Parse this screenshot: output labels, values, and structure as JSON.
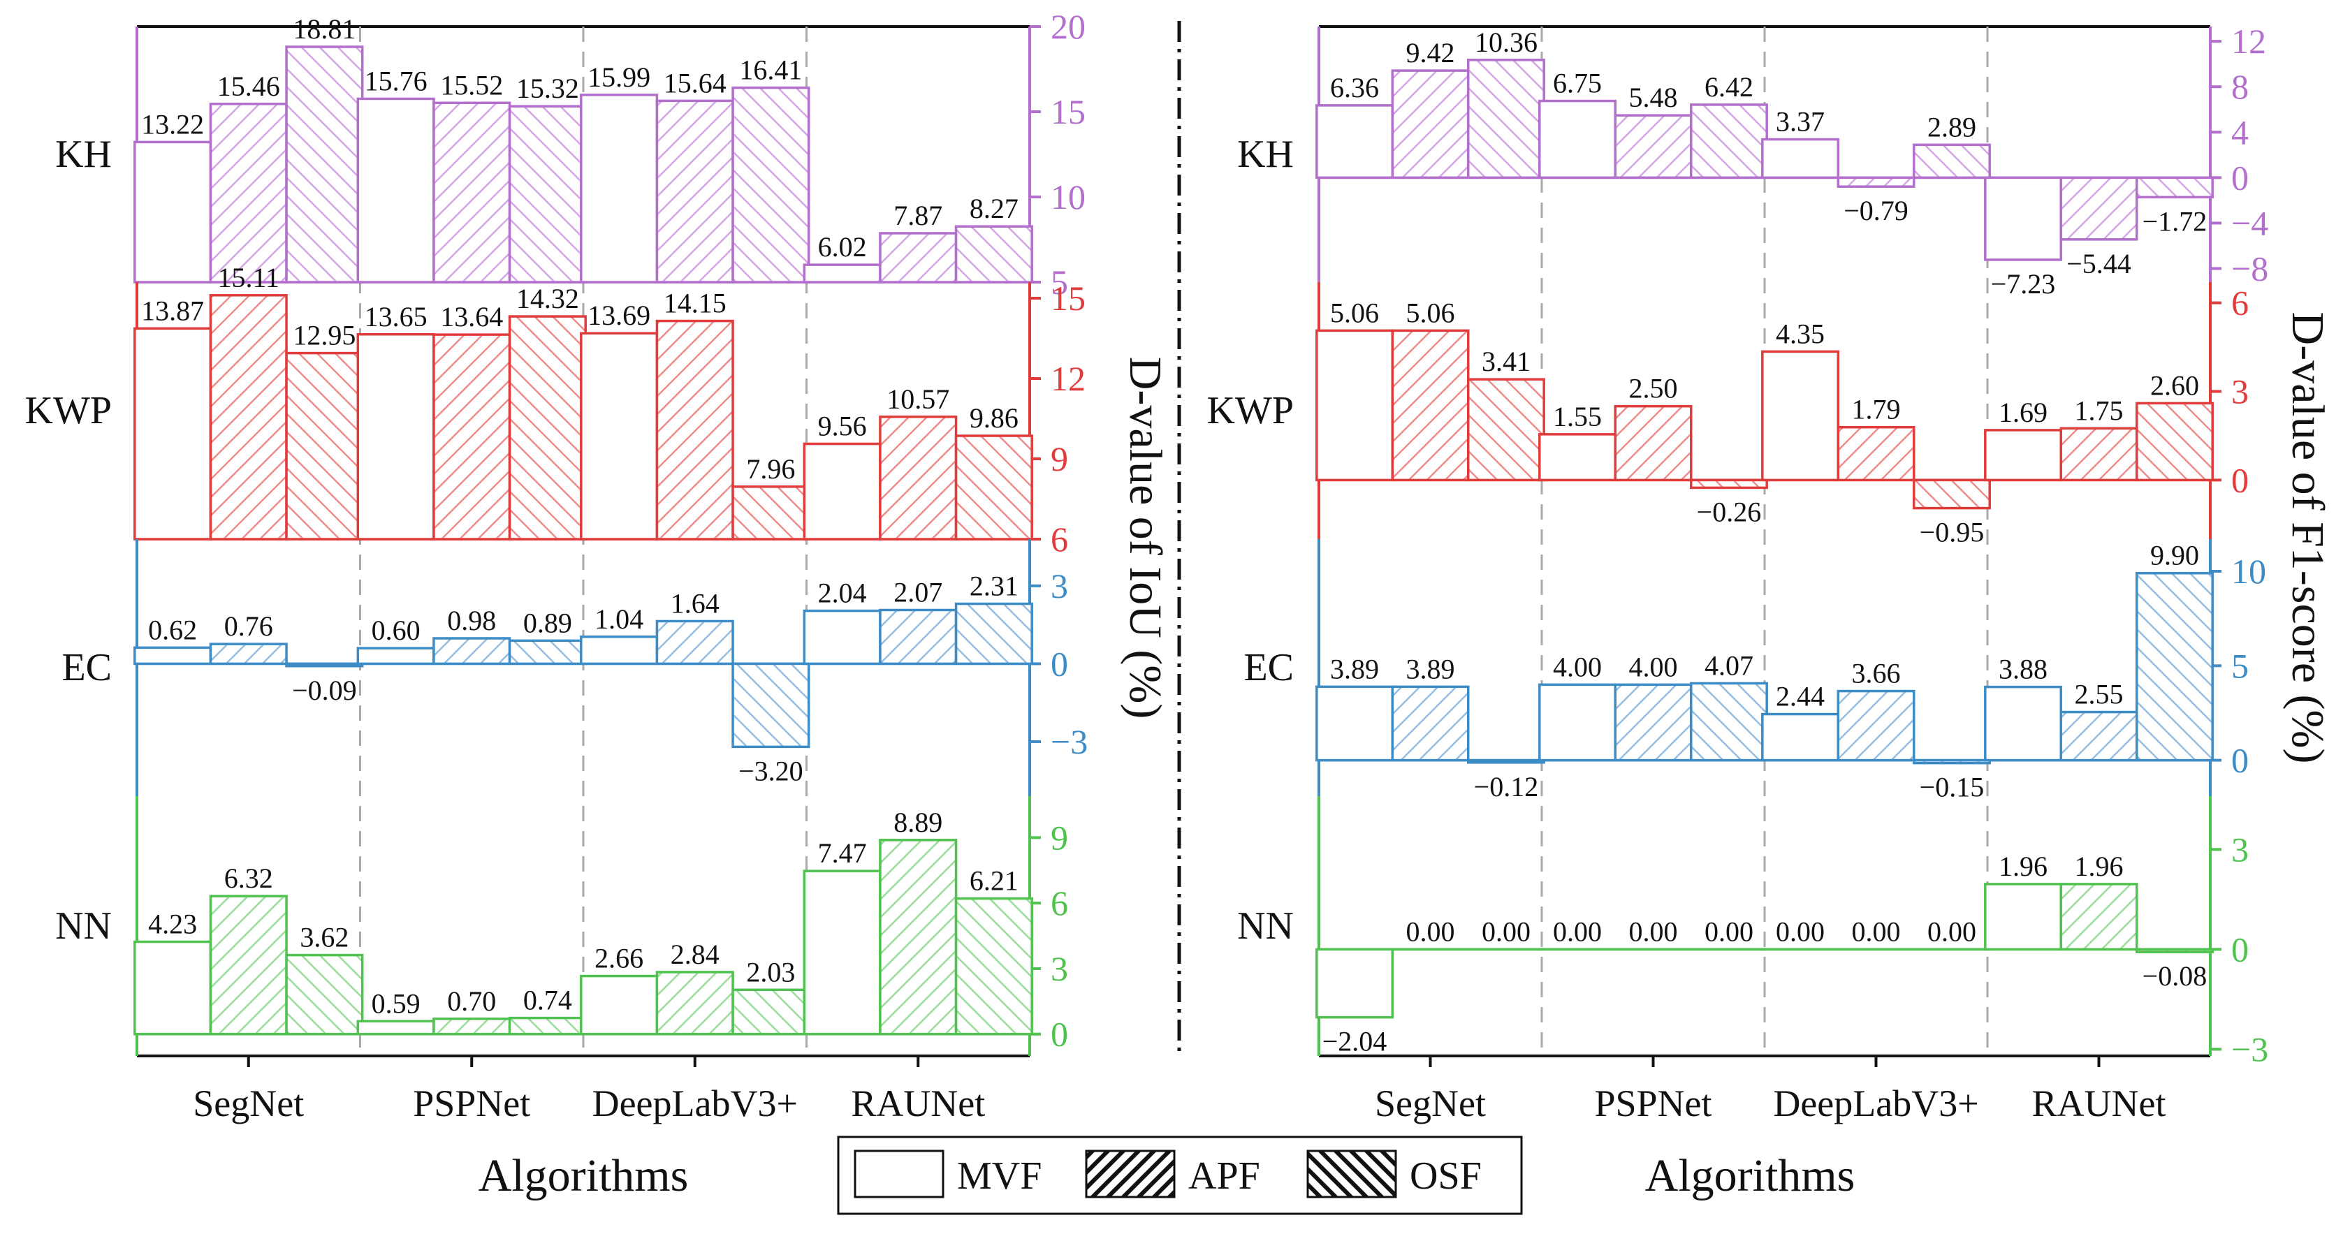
{
  "figure": {
    "left_axis_title": "D-value of IoU (%)",
    "right_axis_title": "D-value of F1-score (%)",
    "x_label": "Algorithms"
  },
  "legend": {
    "items": [
      {
        "name": "MVF",
        "pattern": "none"
      },
      {
        "name": "APF",
        "pattern": "forward-hatch"
      },
      {
        "name": "OSF",
        "pattern": "backward-hatch"
      }
    ]
  },
  "colors": {
    "KH": "#b26fcc",
    "KWP": "#e03c3c",
    "EC": "#3e8cc5",
    "NN": "#4fc24f"
  },
  "chart_data": [
    {
      "type": "bar",
      "title": "",
      "xlabel": "Algorithms",
      "ylabel": "D-value of IoU (%)",
      "categories": [
        "SegNet",
        "PSPNet",
        "DeepLabV3+",
        "RAUNet"
      ],
      "series_names": [
        "MVF",
        "APF",
        "OSF"
      ],
      "panels": [
        {
          "name": "KH",
          "ylim": [
            5,
            20
          ],
          "ticks": [
            5,
            10,
            15,
            20
          ],
          "baseline": 5,
          "values": [
            [
              13.22,
              15.46,
              18.81
            ],
            [
              15.76,
              15.52,
              15.32
            ],
            [
              15.99,
              15.64,
              16.41
            ],
            [
              6.02,
              7.87,
              8.27
            ]
          ]
        },
        {
          "name": "KWP",
          "ylim": [
            6,
            15.6
          ],
          "ticks": [
            6,
            9,
            12,
            15
          ],
          "baseline": 6,
          "values": [
            [
              13.87,
              15.11,
              12.95
            ],
            [
              13.65,
              13.64,
              14.32
            ],
            [
              13.69,
              14.15,
              7.96
            ],
            [
              9.56,
              10.57,
              9.86
            ]
          ]
        },
        {
          "name": "EC",
          "ylim": [
            -5.1,
            4.8
          ],
          "ticks": [
            -3,
            0,
            3
          ],
          "baseline": 0,
          "values": [
            [
              0.62,
              0.76,
              -0.09
            ],
            [
              0.6,
              0.98,
              0.89
            ],
            [
              1.04,
              1.64,
              -3.2
            ],
            [
              2.04,
              2.07,
              2.31
            ]
          ]
        },
        {
          "name": "NN",
          "ylim": [
            -1.0,
            10.9
          ],
          "ticks": [
            0,
            3,
            6,
            9
          ],
          "baseline": 0,
          "values": [
            [
              4.23,
              6.32,
              3.62
            ],
            [
              0.59,
              0.7,
              0.74
            ],
            [
              2.66,
              2.84,
              2.03
            ],
            [
              7.47,
              8.89,
              6.21
            ]
          ]
        }
      ]
    },
    {
      "type": "bar",
      "title": "",
      "xlabel": "Algorithms",
      "ylabel": "D-value of F1-score (%)",
      "categories": [
        "SegNet",
        "PSPNet",
        "DeepLabV3+",
        "RAUNet"
      ],
      "series_names": [
        "MVF",
        "APF",
        "OSF"
      ],
      "panels": [
        {
          "name": "KH",
          "ylim": [
            -9.2,
            13.3
          ],
          "ticks": [
            -8,
            -4,
            0,
            4,
            8,
            12
          ],
          "baseline": 0,
          "values": [
            [
              6.36,
              9.42,
              10.36
            ],
            [
              6.75,
              5.48,
              6.42
            ],
            [
              3.37,
              -0.79,
              2.89
            ],
            [
              -7.23,
              -5.44,
              -1.72
            ]
          ]
        },
        {
          "name": "KWP",
          "ylim": [
            -2.0,
            6.7
          ],
          "ticks": [
            0,
            3,
            6
          ],
          "baseline": 0,
          "values": [
            [
              5.06,
              5.06,
              3.41
            ],
            [
              1.55,
              2.5,
              -0.26
            ],
            [
              4.35,
              1.79,
              -0.95
            ],
            [
              1.69,
              1.75,
              2.6
            ]
          ]
        },
        {
          "name": "EC",
          "ylim": [
            -1.9,
            11.7
          ],
          "ticks": [
            0,
            5,
            10
          ],
          "baseline": 0,
          "values": [
            [
              3.89,
              3.89,
              -0.12
            ],
            [
              4.0,
              4.0,
              4.07
            ],
            [
              2.44,
              3.66,
              -0.15
            ],
            [
              3.88,
              2.55,
              9.9
            ]
          ]
        },
        {
          "name": "NN",
          "ylim": [
            -3.2,
            4.6
          ],
          "ticks": [
            -3,
            0,
            3
          ],
          "baseline": 0,
          "values": [
            [
              -2.04,
              0.0,
              0.0
            ],
            [
              0.0,
              0.0,
              0.0
            ],
            [
              0.0,
              0.0,
              0.0
            ],
            [
              1.96,
              1.96,
              -0.08
            ]
          ]
        }
      ]
    }
  ]
}
